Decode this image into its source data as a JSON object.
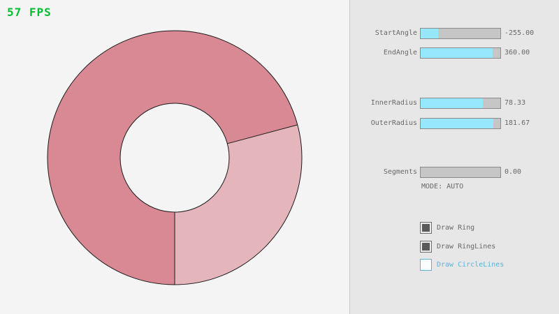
{
  "fps": "57 FPS",
  "colors": {
    "fps_green": "#00bd32",
    "ring_dark": "#d98994",
    "ring_light": "#e5b5bc",
    "ring_outline": "#1a1a1a",
    "slider_fill": "#97e8ff",
    "accent_blue": "#5bb2d9",
    "text_gray": "#686868"
  },
  "ring": {
    "start_angle": -255.0,
    "end_angle": 360.0,
    "inner_radius": 78.33,
    "outer_radius": 181.67,
    "segments": 0.0
  },
  "panel": {
    "sliders": [
      {
        "label": "StartAngle",
        "value": "-255.00",
        "fill_pct": 21.7
      },
      {
        "label": "EndAngle",
        "value": "360.00",
        "fill_pct": 90.0
      },
      {
        "label": "InnerRadius",
        "value": "78.33",
        "fill_pct": 78.3
      },
      {
        "label": "OuterRadius",
        "value": "181.67",
        "fill_pct": 90.8
      },
      {
        "label": "Segments",
        "value": "0.00",
        "fill_pct": 0.0
      }
    ],
    "mode_label": "MODE: AUTO",
    "checkboxes": [
      {
        "label": "Draw Ring",
        "checked": true
      },
      {
        "label": "Draw RingLines",
        "checked": true
      },
      {
        "label": "Draw CircleLines",
        "checked": false
      }
    ]
  }
}
